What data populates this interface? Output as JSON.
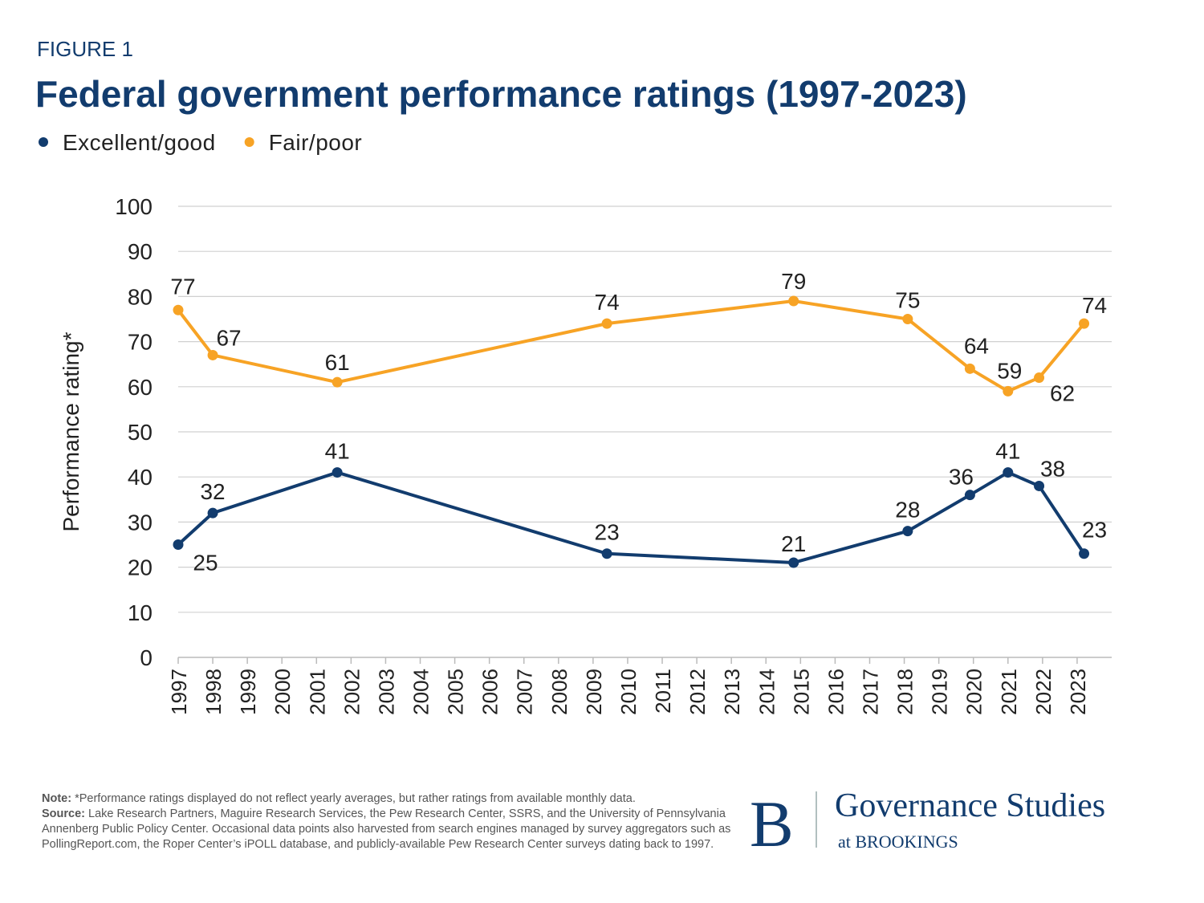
{
  "chart_data": {
    "type": "line",
    "figure_label": "FIGURE 1",
    "title": "Federal government performance ratings (1997-2023)",
    "y_label": "Performance rating*",
    "x": [
      1997,
      1998,
      2001.6,
      2009.4,
      2014.8,
      2018.1,
      2019.9,
      2021,
      2021.9,
      2023.2
    ],
    "xlim": [
      1997,
      2024
    ],
    "xticks": [
      1997,
      1998,
      1999,
      2000,
      2001,
      2002,
      2003,
      2004,
      2005,
      2006,
      2007,
      2008,
      2009,
      2010,
      2011,
      2012,
      2013,
      2014,
      2015,
      2016,
      2017,
      2018,
      2019,
      2020,
      2021,
      2022,
      2023
    ],
    "ylim": [
      0,
      100
    ],
    "yticks": [
      0,
      10,
      20,
      30,
      40,
      50,
      60,
      70,
      80,
      90,
      100
    ],
    "grid": true,
    "legend": "top-left",
    "series": [
      {
        "name": "Excellent/good",
        "color": "#123c6e",
        "values": [
          25,
          32,
          41,
          23,
          21,
          28,
          36,
          41,
          38,
          23
        ]
      },
      {
        "name": "Fair/poor",
        "color": "#f7a325",
        "values": [
          77,
          67,
          61,
          74,
          79,
          75,
          64,
          59,
          62,
          74
        ]
      }
    ]
  },
  "footnote": {
    "note_label": "Note:",
    "note": "*Performance ratings displayed do not reflect yearly averages, but rather ratings from available monthly data.",
    "source_label": "Source:",
    "source": "Lake Research Partners, Maguire Research Services, the Pew Research Center, SSRS, and the University of Pennsylvania Annenberg Public Policy Center. Occasional data points also harvested from search engines managed by survey aggregators such as PollingReport.com, the Roper Center’s iPOLL database, and publicly-available Pew Research Center surveys dating back to 1997."
  },
  "logo": {
    "letter": "B",
    "name": "Governance Studies",
    "sub": "at BROOKINGS"
  }
}
